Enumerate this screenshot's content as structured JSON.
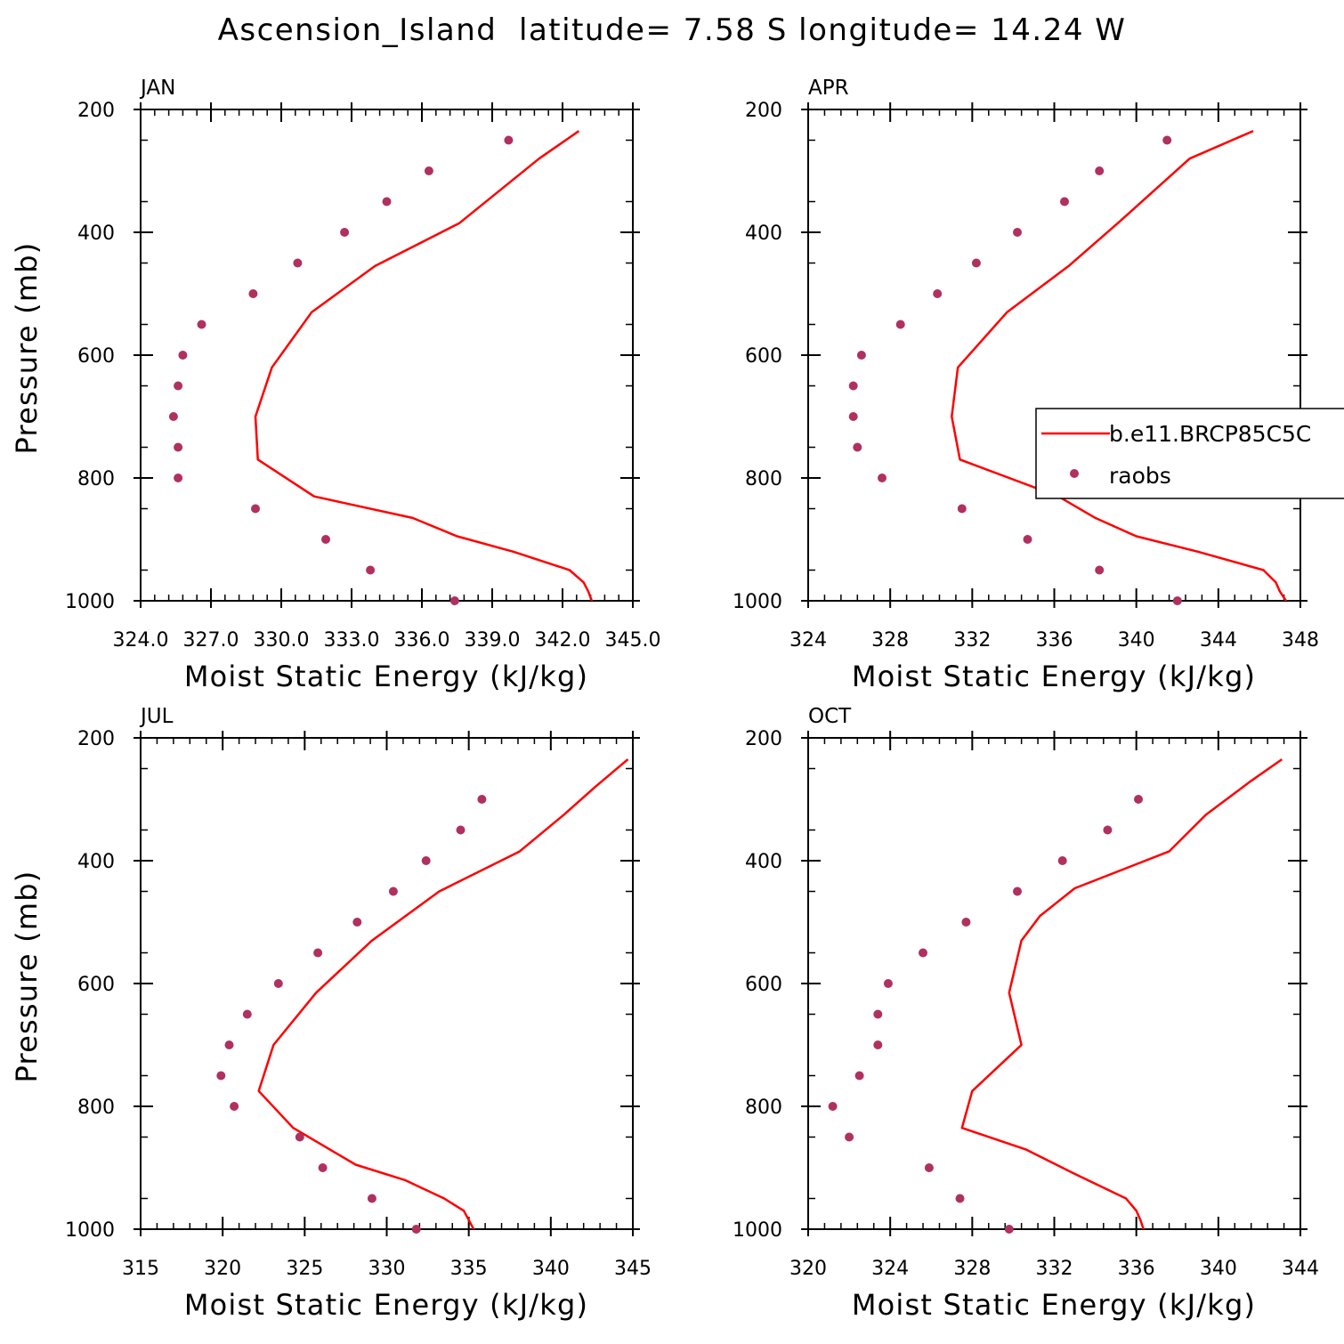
{
  "title": "Ascension_Island  latitude= 7.58 S longitude= 14.24 W",
  "legend": {
    "model_label": "b.e11.BRCP85C5C",
    "obs_label": "raobs"
  },
  "colors": {
    "model_line": "#ff0000",
    "obs_points": "#b03060"
  },
  "chart_data": [
    {
      "type": "line",
      "panel_label": "JAN",
      "xlabel": "Moist Static Energy (kJ/kg)",
      "ylabel": "Pressure (mb)",
      "xlim": [
        324.0,
        345.0
      ],
      "xticks": [
        324.0,
        327.0,
        330.0,
        333.0,
        336.0,
        339.0,
        342.0,
        345.0
      ],
      "xtick_labels": [
        "324.0",
        "327.0",
        "330.0",
        "333.0",
        "336.0",
        "339.0",
        "342.0",
        "345.0"
      ],
      "ylim": [
        1000,
        200
      ],
      "yticks": [
        200,
        400,
        600,
        800,
        1000
      ],
      "y_reversed": true,
      "series": [
        {
          "name": "b.e11.BRCP85C5C",
          "type": "line",
          "x": [
            343.3,
            343.1,
            342.9,
            342.3,
            339.9,
            337.5,
            335.6,
            331.4,
            329.0,
            328.9,
            329.6,
            331.3,
            334.0,
            337.6,
            341.0,
            342.7
          ],
          "y": [
            1005,
            985,
            970,
            950,
            920,
            895,
            865,
            830,
            770,
            700,
            620,
            530,
            455,
            385,
            280,
            235
          ]
        },
        {
          "name": "raobs",
          "type": "scatter",
          "x": [
            337.4,
            333.8,
            331.9,
            328.9,
            325.6,
            325.6,
            325.4,
            325.6,
            325.8,
            326.6,
            328.8,
            330.7,
            332.7,
            334.5,
            336.3,
            339.7
          ],
          "y": [
            1000,
            950,
            900,
            850,
            800,
            750,
            700,
            650,
            600,
            550,
            500,
            450,
            400,
            350,
            300,
            250
          ]
        }
      ]
    },
    {
      "type": "line",
      "panel_label": "APR",
      "xlabel": "Moist Static Energy (kJ/kg)",
      "ylabel": "",
      "xlim": [
        324,
        348
      ],
      "xticks": [
        324,
        328,
        332,
        336,
        340,
        344,
        348
      ],
      "xtick_labels": [
        "324",
        "328",
        "332",
        "336",
        "340",
        "344",
        "348"
      ],
      "ylim": [
        1000,
        200
      ],
      "yticks": [
        200,
        400,
        600,
        800,
        1000
      ],
      "y_reversed": true,
      "legend": {
        "position": "right",
        "entries": [
          "b.e11.BRCP85C5C",
          "raobs"
        ]
      },
      "series": [
        {
          "name": "b.e11.BRCP85C5C",
          "type": "line",
          "x": [
            347.4,
            347.0,
            346.8,
            346.2,
            343.0,
            340.0,
            338.0,
            336.2,
            331.4,
            331.0,
            331.3,
            333.7,
            336.7,
            339.1,
            342.6,
            345.7
          ],
          "y": [
            1005,
            985,
            970,
            950,
            920,
            895,
            865,
            830,
            770,
            700,
            620,
            530,
            455,
            385,
            280,
            235
          ]
        },
        {
          "name": "raobs",
          "type": "scatter",
          "x": [
            342.0,
            338.2,
            334.7,
            331.5,
            327.6,
            326.4,
            326.2,
            326.2,
            326.6,
            328.5,
            330.3,
            332.2,
            334.2,
            336.5,
            338.2,
            341.5
          ],
          "y": [
            1000,
            950,
            900,
            850,
            800,
            750,
            700,
            650,
            600,
            550,
            500,
            450,
            400,
            350,
            300,
            250
          ]
        }
      ]
    },
    {
      "type": "line",
      "panel_label": "JUL",
      "xlabel": "Moist Static Energy (kJ/kg)",
      "ylabel": "Pressure (mb)",
      "xlim": [
        315,
        345
      ],
      "xticks": [
        315,
        320,
        325,
        330,
        335,
        340,
        345
      ],
      "xtick_labels": [
        "315",
        "320",
        "325",
        "330",
        "335",
        "340",
        "345"
      ],
      "ylim": [
        1000,
        200
      ],
      "yticks": [
        200,
        400,
        600,
        800,
        1000
      ],
      "y_reversed": true,
      "series": [
        {
          "name": "b.e11.BRCP85C5C",
          "type": "line",
          "x": [
            335.4,
            335.0,
            334.7,
            333.5,
            331.1,
            328.1,
            324.3,
            322.2,
            323.1,
            325.7,
            329.1,
            333.2,
            338.1,
            340.8,
            342.7,
            344.7
          ],
          "y": [
            1005,
            985,
            970,
            950,
            920,
            895,
            835,
            775,
            700,
            615,
            530,
            450,
            385,
            325,
            280,
            235
          ]
        },
        {
          "name": "raobs",
          "type": "scatter",
          "x": [
            331.8,
            329.1,
            326.1,
            324.7,
            320.7,
            319.9,
            320.4,
            321.5,
            323.4,
            325.8,
            328.2,
            330.4,
            332.4,
            334.5,
            335.8
          ],
          "y": [
            1000,
            950,
            900,
            850,
            800,
            750,
            700,
            650,
            600,
            550,
            500,
            450,
            400,
            350,
            300
          ]
        }
      ]
    },
    {
      "type": "line",
      "panel_label": "OCT",
      "xlabel": "Moist Static Energy (kJ/kg)",
      "ylabel": "",
      "xlim": [
        320,
        344
      ],
      "xticks": [
        320,
        324,
        328,
        332,
        336,
        340,
        344
      ],
      "xtick_labels": [
        "320",
        "324",
        "328",
        "332",
        "336",
        "340",
        "344"
      ],
      "ylim": [
        1000,
        200
      ],
      "yticks": [
        200,
        400,
        600,
        800,
        1000
      ],
      "y_reversed": true,
      "series": [
        {
          "name": "b.e11.BRCP85C5C",
          "type": "line",
          "x": [
            336.4,
            336.2,
            336.0,
            335.5,
            333.0,
            330.6,
            327.5,
            328.0,
            330.4,
            329.8,
            330.4,
            331.3,
            333.0,
            337.6,
            339.4,
            341.6,
            343.1
          ],
          "y": [
            1005,
            985,
            970,
            950,
            910,
            870,
            835,
            775,
            700,
            615,
            530,
            490,
            445,
            385,
            325,
            270,
            235
          ]
        },
        {
          "name": "raobs",
          "type": "scatter",
          "x": [
            329.8,
            327.4,
            325.9,
            322.0,
            321.2,
            322.5,
            323.4,
            323.4,
            323.9,
            325.6,
            327.7,
            330.2,
            332.4,
            334.6,
            336.1
          ],
          "y": [
            1000,
            950,
            900,
            850,
            800,
            750,
            700,
            650,
            600,
            550,
            500,
            450,
            400,
            350,
            300
          ]
        }
      ]
    }
  ]
}
